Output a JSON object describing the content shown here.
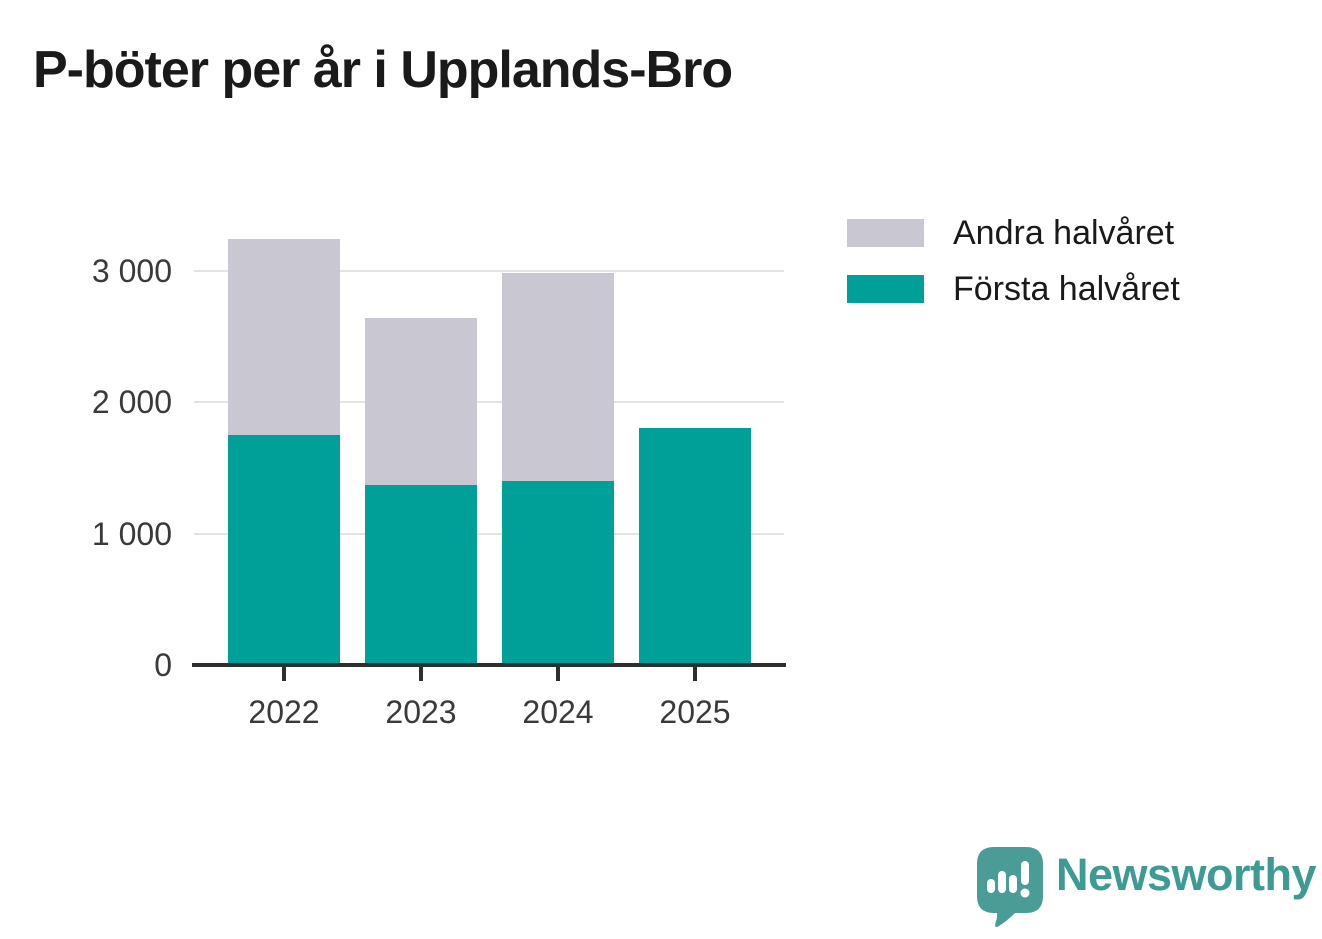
{
  "title": "P-böter per år i Upplands-Bro",
  "colors": {
    "first_half": "#00a099",
    "second_half": "#c9c7d1",
    "axis": "#2f2f2f",
    "gridline": "#e4e4e6",
    "axis_text": "#3a3a3a",
    "title_text": "#1a1a1a",
    "logo_teal": "#3d9b94",
    "background": "#ffffff"
  },
  "legend": {
    "items": [
      {
        "label": "Andra halvåret",
        "color_key": "second_half"
      },
      {
        "label": "Första halvåret",
        "color_key": "first_half"
      }
    ]
  },
  "chart_data": {
    "type": "bar",
    "stacked": true,
    "title": "P-böter per år i Upplands-Bro",
    "categories": [
      "2022",
      "2023",
      "2024",
      "2025"
    ],
    "series": [
      {
        "name": "Första halvåret",
        "values": [
          1750,
          1370,
          1400,
          1800
        ],
        "color": "#00a099"
      },
      {
        "name": "Andra halvåret",
        "values": [
          1490,
          1270,
          1580,
          0
        ],
        "color": "#c9c7d1"
      }
    ],
    "totals": [
      3240,
      2640,
      2980,
      1800
    ],
    "xlabel": "",
    "ylabel": "",
    "ylim": [
      0,
      3400
    ],
    "yticks": [
      0,
      1000,
      2000,
      3000
    ],
    "ytick_labels": [
      "0",
      "1 000",
      "2 000",
      "3 000"
    ],
    "grid": true,
    "legend_position": "upper-right-outside"
  },
  "footer": {
    "brand": "Newsworthy",
    "logo_icon": "speech-bubble-with-bar-chart-and-exclamation"
  }
}
